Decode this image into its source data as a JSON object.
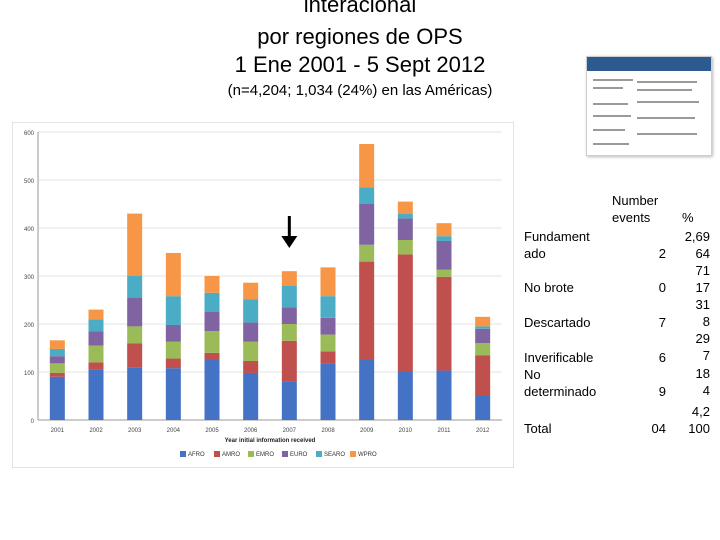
{
  "header": {
    "title_line1": "interacional",
    "title_line2": "por regiones de OPS",
    "title_line3": "1 Ene 2001 - 5 Sept 2012",
    "subtitle": "(n=4,204; 1,034 (24%) en las Américas)"
  },
  "chart_data": {
    "type": "bar",
    "stacked": true,
    "categories": [
      "2001",
      "2002",
      "2003",
      "2004",
      "2005",
      "2006",
      "2007",
      "2008",
      "2009",
      "2010",
      "2011",
      "2012"
    ],
    "xlabel": "Year initial information received",
    "ylabel": "",
    "ylim": [
      0,
      600
    ],
    "yticks": [
      0,
      100,
      200,
      300,
      400,
      500,
      600
    ],
    "legend_position": "bottom",
    "annotation": "arrow above 2007",
    "series": [
      {
        "name": "AFRO",
        "color": "#4472c4",
        "values": [
          90,
          105,
          110,
          108,
          125,
          98,
          80,
          118,
          125,
          100,
          103,
          50
        ]
      },
      {
        "name": "AMRO",
        "color": "#c0504d",
        "values": [
          8,
          15,
          50,
          20,
          15,
          25,
          85,
          25,
          205,
          245,
          195,
          85
        ]
      },
      {
        "name": "EMRO",
        "color": "#9bbb59",
        "values": [
          20,
          35,
          35,
          35,
          45,
          40,
          35,
          35,
          35,
          30,
          15,
          25
        ]
      },
      {
        "name": "EURO",
        "color": "#8064a2",
        "values": [
          15,
          30,
          60,
          35,
          40,
          40,
          35,
          35,
          85,
          45,
          60,
          30
        ]
      },
      {
        "name": "SEARO",
        "color": "#4bacc6",
        "values": [
          15,
          25,
          45,
          60,
          40,
          48,
          45,
          45,
          35,
          10,
          10,
          5
        ]
      },
      {
        "name": "WPRO",
        "color": "#f79646",
        "values": [
          18,
          20,
          130,
          90,
          35,
          35,
          30,
          60,
          90,
          25,
          27,
          20
        ]
      }
    ]
  },
  "table": {
    "header_line1": "Number",
    "header_line2": "events",
    "header_pct": "%",
    "rows": [
      {
        "label1": "Fundament",
        "label2": "ado",
        "n": "2",
        "pct1": "2,69",
        "pct2": "64"
      },
      {
        "label1": "No brote",
        "label2": "",
        "n": "0",
        "pct1": "71",
        "pct2": "17"
      },
      {
        "label1": "Descartado",
        "label2": "",
        "n": "7",
        "pct1": "31",
        "pct2": "8"
      },
      {
        "label1": "Inverificable",
        "label2": "",
        "n": "6",
        "pct1": "29",
        "pct2": "7"
      },
      {
        "label1": "No",
        "label2": "determinado",
        "n": "9",
        "pct1": "18",
        "pct2": "4"
      },
      {
        "label1": "Total",
        "label2": "",
        "n": "04",
        "pct1": "4,2",
        "pct2": "100"
      }
    ]
  }
}
